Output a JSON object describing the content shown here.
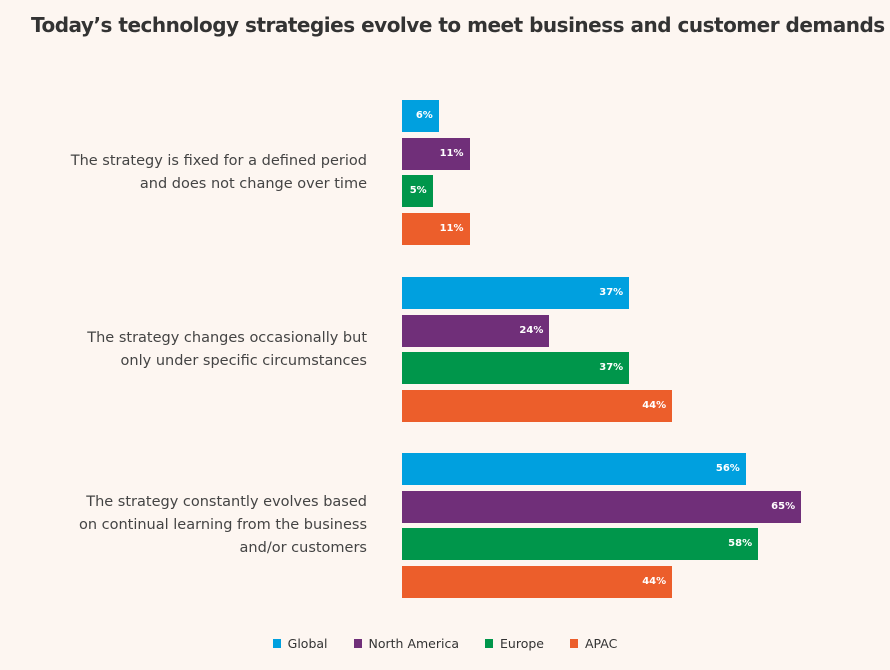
{
  "chart_data": {
    "type": "bar",
    "orientation": "horizontal",
    "title": "Today’s technology strategies evolve to meet business and customer demands",
    "xlabel": "",
    "ylabel": "",
    "unit": "%",
    "xlim": [
      0,
      100
    ],
    "grid": false,
    "legend_position": "bottom",
    "categories": [
      "The strategy is fixed for a defined period and does not change over time",
      "The strategy changes occasionally but only under specific circumstances",
      "The strategy constantly evolves based on continual learning from the business and/or customers"
    ],
    "category_lines": [
      [
        "The strategy is fixed for a defined period",
        "and does not change over time"
      ],
      [
        "The strategy changes occasionally but",
        "only under specific circumstances"
      ],
      [
        "The strategy constantly evolves based",
        "on continual learning from the business",
        "and/or customers"
      ]
    ],
    "series": [
      {
        "name": "Global",
        "color": "#00a0df",
        "values": [
          6,
          37,
          56
        ]
      },
      {
        "name": "North America",
        "color": "#702f79",
        "values": [
          11,
          24,
          65
        ]
      },
      {
        "name": "Europe",
        "color": "#00964b",
        "values": [
          5,
          37,
          58
        ]
      },
      {
        "name": "APAC",
        "color": "#ec5e2b",
        "values": [
          11,
          44,
          44
        ]
      }
    ]
  }
}
